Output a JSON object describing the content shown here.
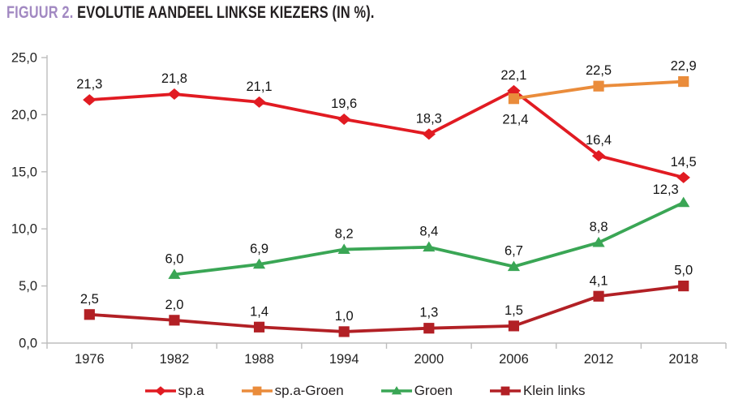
{
  "title": {
    "prefix": "FIGUUR 2.",
    "text": " EVOLUTIE AANDEEL LINKSE KIEZERS (IN %).",
    "prefix_color": "#a289c2",
    "text_color": "#231f20"
  },
  "chart_data": {
    "type": "line",
    "categories": [
      "1976",
      "1982",
      "1988",
      "1994",
      "2000",
      "2006",
      "2012",
      "2018"
    ],
    "ylim": [
      0,
      25
    ],
    "yticks": [
      0,
      5,
      10,
      15,
      20,
      25
    ],
    "ytick_labels": [
      "0,0",
      "5,0",
      "10,0",
      "15,0",
      "20,0",
      "25,0"
    ],
    "grid": false,
    "legend_position": "bottom",
    "axis_color": "#bdbdbd",
    "tick_text_color": "#232323",
    "data_label_color": "#141414",
    "series": [
      {
        "name": "sp.a",
        "color": "#e11b22",
        "marker": "diamond",
        "values": [
          21.3,
          21.8,
          21.1,
          19.6,
          18.3,
          22.1,
          16.4,
          14.5
        ],
        "labels": [
          "21,3",
          "21,8",
          "21,1",
          "19,6",
          "18,3",
          "22,1",
          "16,4",
          "14,5"
        ],
        "label_offsets": {}
      },
      {
        "name": "sp.a-Groen",
        "color": "#ea8c3b",
        "marker": "square",
        "values": [
          null,
          null,
          null,
          null,
          null,
          21.4,
          22.5,
          22.9
        ],
        "labels": [
          null,
          null,
          null,
          null,
          null,
          "21,4",
          "22,5",
          "22,9"
        ],
        "label_offsets": {
          "5": [
            2,
            31
          ]
        }
      },
      {
        "name": "Groen",
        "color": "#3aa655",
        "marker": "triangle",
        "values": [
          null,
          6.0,
          6.9,
          8.2,
          8.4,
          6.7,
          8.8,
          12.3
        ],
        "labels": [
          null,
          "6,0",
          "6,9",
          "8,2",
          "8,4",
          "6,7",
          "8,8",
          "12,3"
        ],
        "label_offsets": {
          "7": [
            -22,
            -11
          ]
        }
      },
      {
        "name": "Klein links",
        "color": "#b22025",
        "marker": "square",
        "values": [
          2.5,
          2.0,
          1.4,
          1.0,
          1.3,
          1.5,
          4.1,
          5.0
        ],
        "labels": [
          "2,5",
          "2,0",
          "1,4",
          "1,0",
          "1,3",
          "1,5",
          "4,1",
          "5,0"
        ],
        "label_offsets": {}
      }
    ]
  }
}
